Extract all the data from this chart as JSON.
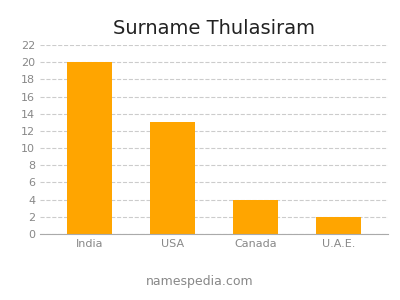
{
  "title": "Surname Thulasiram",
  "categories": [
    "India",
    "USA",
    "Canada",
    "U.A.E."
  ],
  "values": [
    20,
    13,
    4,
    2
  ],
  "bar_color": "#FFA500",
  "ylim": [
    0,
    22
  ],
  "yticks": [
    0,
    2,
    4,
    6,
    8,
    10,
    12,
    14,
    16,
    18,
    20,
    22
  ],
  "grid_color": "#cccccc",
  "background_color": "#ffffff",
  "footer_text": "namespedia.com",
  "title_fontsize": 14,
  "tick_fontsize": 8,
  "footer_fontsize": 9
}
